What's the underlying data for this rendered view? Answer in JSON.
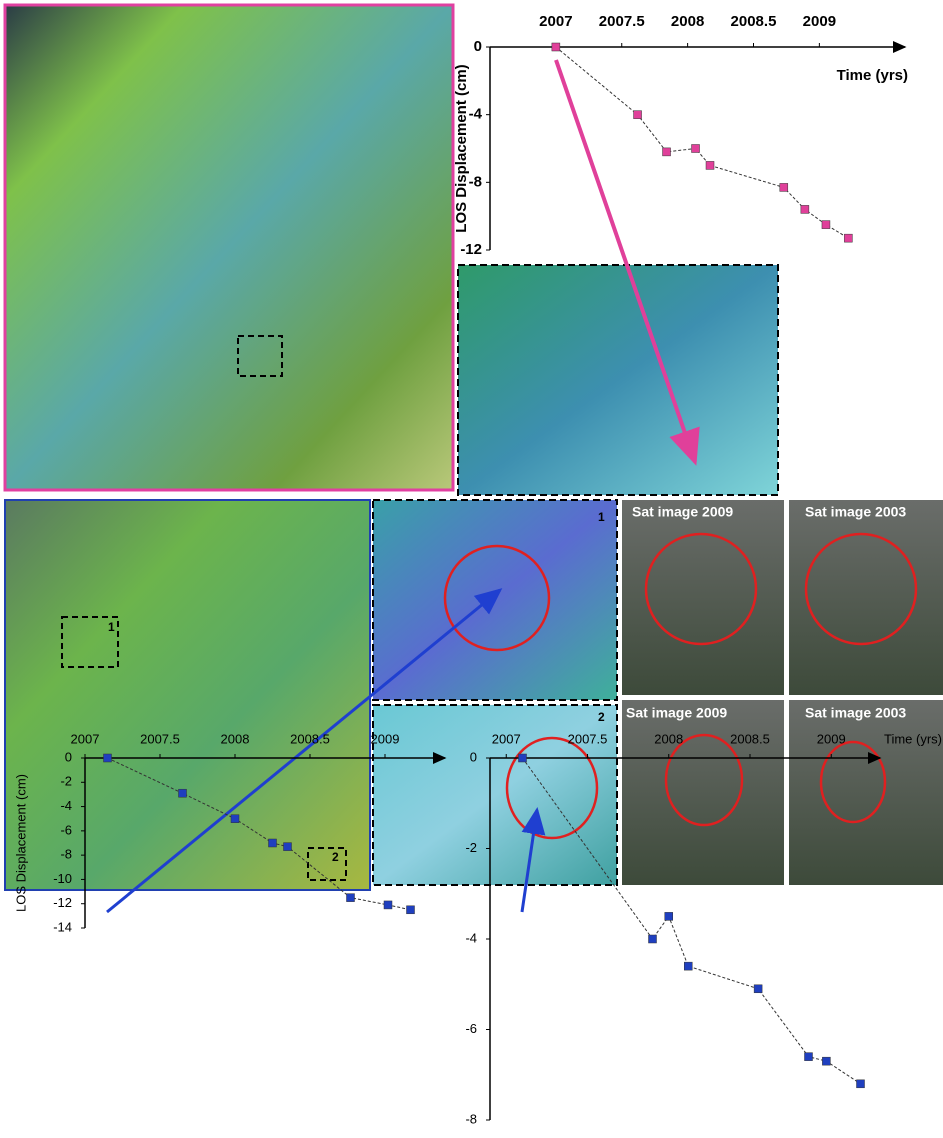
{
  "chart_data": [
    {
      "type": "scatter",
      "x_label": "Time (yrs)",
      "y_label": "LOS Displacement (cm)",
      "xlim": [
        2006.5,
        2009.65
      ],
      "ylim": [
        -12,
        0
      ],
      "xticks": [
        2007,
        2007.5,
        2008,
        2008.5,
        2009
      ],
      "yticks": [
        0,
        -4,
        -8,
        -12
      ],
      "x": [
        2007.0,
        2007.62,
        2007.84,
        2008.06,
        2008.17,
        2008.73,
        2008.89,
        2009.05,
        2009.22
      ],
      "values": [
        0,
        -4,
        -6.2,
        -6,
        -7,
        -8.3,
        -9.6,
        -10.5,
        -11.3
      ],
      "color": "#e0409a",
      "trendline": true
    },
    {
      "type": "scatter",
      "y_label": "LOS Displacement (cm)",
      "xlim": [
        2007,
        2009.4
      ],
      "ylim": [
        -14,
        0
      ],
      "xticks": [
        2007,
        2007.5,
        2008,
        2008.5,
        2009
      ],
      "yticks": [
        0,
        -2,
        -4,
        -6,
        -8,
        -10,
        -12,
        -14
      ],
      "x": [
        2007.15,
        2007.65,
        2008.0,
        2008.25,
        2008.35,
        2008.77,
        2009.02,
        2009.17
      ],
      "values": [
        0,
        -2.9,
        -5,
        -7,
        -7.3,
        -11.5,
        -12.1,
        -12.5
      ],
      "color": "#1f3fbf",
      "trendline": true
    },
    {
      "type": "scatter",
      "x_label": "Time (yrs)",
      "xlim": [
        2006.9,
        2009.3
      ],
      "ylim": [
        -8,
        0
      ],
      "xticks": [
        2007,
        2007.5,
        2008,
        2008.5,
        2009
      ],
      "yticks": [
        0,
        -2,
        -4,
        -6,
        -8
      ],
      "x": [
        2007.1,
        2007.9,
        2008.0,
        2008.12,
        2008.55,
        2008.86,
        2008.97,
        2009.18
      ],
      "values": [
        0,
        -4,
        -3.5,
        -4.6,
        -5.1,
        -6.6,
        -6.7,
        -7.2
      ],
      "color": "#1f3fbf",
      "trendline": true
    }
  ],
  "image_labels": [
    "Sat image 2009",
    "Sat image 2003",
    "Sat image 2009",
    "Sat image 2003"
  ],
  "inset_labels": [
    "1",
    "2"
  ],
  "map_labels": [
    "1",
    "2"
  ]
}
